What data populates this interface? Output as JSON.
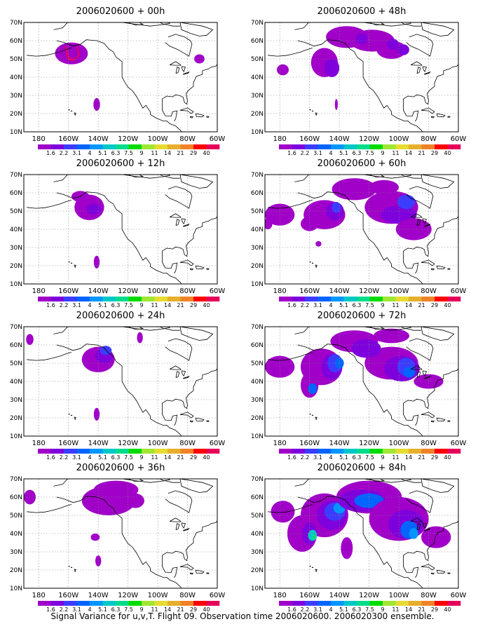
{
  "caption": "Signal Variance for u,v,T. Flight 09. Observation time 2006020600. 2006020300 ensemble.",
  "map": {
    "lat_labels": [
      "70N",
      "60N",
      "50N",
      "40N",
      "30N",
      "20N",
      "10N"
    ],
    "lon_labels": [
      "180",
      "160W",
      "140W",
      "120W",
      "100W",
      "80W",
      "60W"
    ],
    "lat_range": [
      10,
      70
    ],
    "lon_range": [
      -190,
      -60
    ]
  },
  "colorbar": {
    "labels": [
      "1.6",
      "2.2",
      "3.1",
      "4",
      "5.1",
      "6.3",
      "7.5",
      "9",
      "11",
      "14",
      "21",
      "29",
      "40"
    ],
    "colors": [
      "#a000c8",
      "#7e00dc",
      "#3c3cff",
      "#0064ff",
      "#0096ff",
      "#00c8c8",
      "#00dc8c",
      "#00dc00",
      "#a0e632",
      "#e6dc32",
      "#e6af2d",
      "#f08228",
      "#fa0000",
      "#e6005a"
    ]
  },
  "panels": [
    {
      "title": "2006020600 + 00h"
    },
    {
      "title": "2006020600 + 48h"
    },
    {
      "title": "2006020600 + 12h"
    },
    {
      "title": "2006020600 + 60h"
    },
    {
      "title": "2006020600 + 24h"
    },
    {
      "title": "2006020600 + 72h"
    },
    {
      "title": "2006020600 + 36h"
    },
    {
      "title": "2006020600 + 84h"
    }
  ]
}
